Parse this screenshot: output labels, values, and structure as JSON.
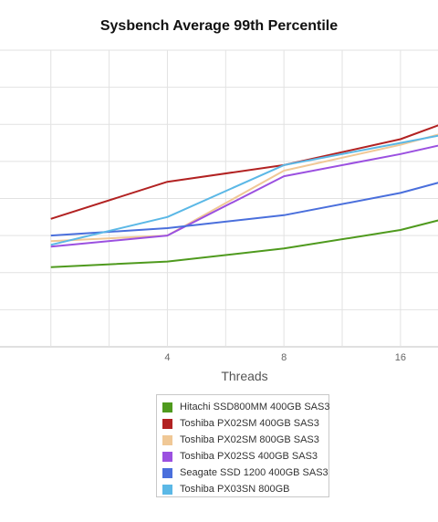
{
  "chart_data": {
    "type": "line",
    "title": "Sysbench Average 99th Percentile",
    "xlabel": "Threads",
    "ylabel": "",
    "x": [
      2,
      4,
      8,
      16,
      32
    ],
    "x_tick_labels": [
      "4",
      "8",
      "16"
    ],
    "xlim": [
      1.4,
      20
    ],
    "ylim": [
      0,
      8
    ],
    "grid": true,
    "legend_position": "bottom",
    "series": [
      {
        "name": "Hitachi SSD800MM 400GB SAS3",
        "color": "#4f9a1e",
        "values": [
          2.15,
          2.3,
          2.65,
          3.15,
          3.95
        ]
      },
      {
        "name": "Toshiba PX02SM 400GB SAS3",
        "color": "#b22222",
        "values": [
          3.45,
          4.45,
          4.9,
          5.6,
          6.75
        ]
      },
      {
        "name": "Toshiba PX02SM 800GB SAS3",
        "color": "#f0c896",
        "values": [
          2.85,
          3.0,
          4.75,
          5.45,
          6.3
        ]
      },
      {
        "name": "Toshiba PX02SS 400GB SAS3",
        "color": "#9b50e0",
        "values": [
          2.7,
          3.0,
          4.6,
          5.2,
          5.9
        ]
      },
      {
        "name": "Seagate SSD 1200 400GB SAS3",
        "color": "#4a6fdc",
        "values": [
          3.0,
          3.2,
          3.55,
          4.15,
          5.0
        ]
      },
      {
        "name": "Toshiba PX03SN 800GB",
        "color": "#5bb8e6",
        "values": [
          2.75,
          3.5,
          4.9,
          5.5,
          6.1
        ]
      }
    ]
  }
}
